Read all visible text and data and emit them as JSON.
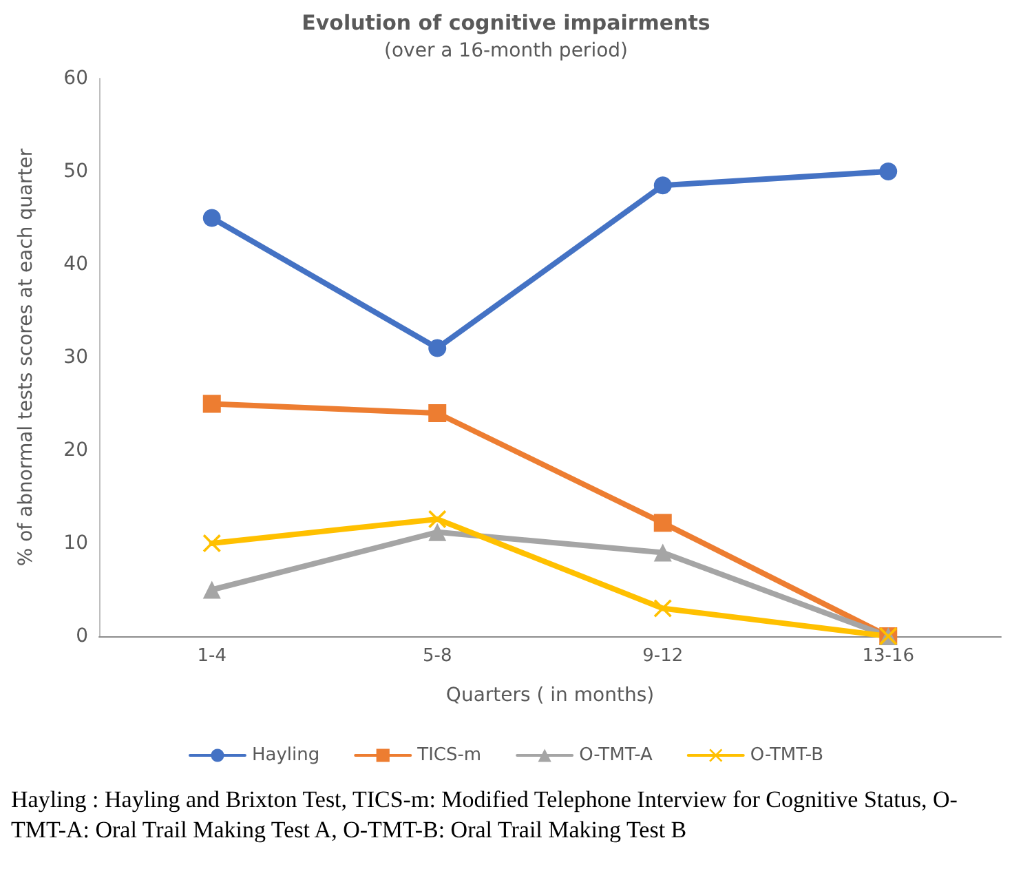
{
  "chart_data": {
    "type": "line",
    "title": "Evolution of cognitive impairments",
    "subtitle": "(over a 16-month period)",
    "xlabel": "Quarters ( in months)",
    "ylabel": "% of abnormal tests scores at each quarter",
    "categories": [
      "1-4",
      "5-8",
      "9-12",
      "13-16"
    ],
    "series": [
      {
        "name": "Hayling",
        "color": "#4472c4",
        "marker": "circle",
        "values": [
          45,
          31,
          48.5,
          50
        ]
      },
      {
        "name": "TICS-m",
        "color": "#ed7d31",
        "marker": "square",
        "values": [
          25,
          24,
          12.2,
          0
        ]
      },
      {
        "name": "O-TMT-A",
        "color": "#a5a5a5",
        "marker": "triangle",
        "values": [
          5,
          11.2,
          9,
          0
        ]
      },
      {
        "name": "O-TMT-B",
        "color": "#ffc000",
        "marker": "cross",
        "values": [
          10,
          12.6,
          3,
          0
        ]
      }
    ],
    "ylim": [
      0,
      60
    ],
    "yticks": [
      0,
      10,
      20,
      30,
      40,
      50,
      60
    ],
    "grid": false,
    "legend": "bottom",
    "line_style": "solid",
    "annotations": [
      "Hayling : Hayling and Brixton Test, TICS-m: Modified Telephone Interview for Cognitive Status, O-TMT-A: Oral Trail Making Test A, O-TMT-B: Oral Trail Making Test B"
    ]
  }
}
